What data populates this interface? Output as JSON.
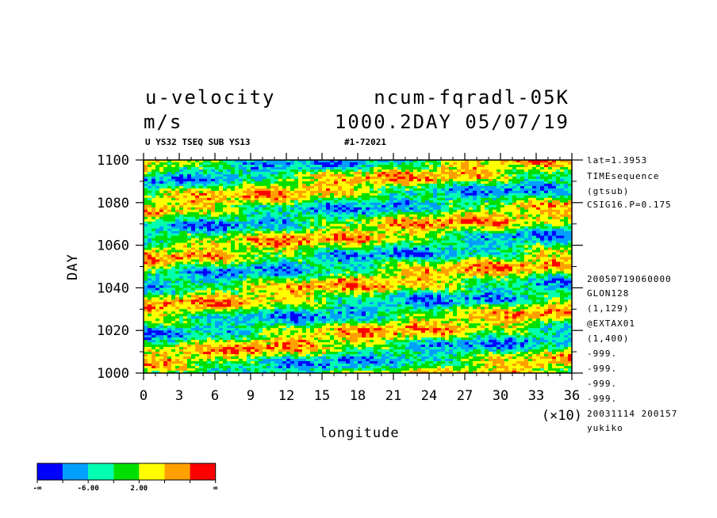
{
  "chart_data": {
    "type": "heatmap",
    "title": "u-velocity",
    "units": "m/s",
    "experiment": "ncum-fqradl-05K",
    "time_label": "1000.2DAY 05/07/19",
    "subtitle_left": "U YS32 TSEQ SUB YS13",
    "subtitle_right": "#1-72021",
    "xlabel": "longitude",
    "ylabel": "DAY",
    "x_multiplier": "(×10)",
    "xlim": [
      0,
      36
    ],
    "ylim": [
      1000,
      1100
    ],
    "x_ticks": [
      "0",
      "3",
      "6",
      "9",
      "12",
      "15",
      "18",
      "21",
      "24",
      "27",
      "30",
      "33",
      "36"
    ],
    "y_ticks": [
      "1000",
      "1020",
      "1040",
      "1060",
      "1080",
      "1100"
    ],
    "colorbar": {
      "colors": [
        "#0000ff",
        "#00a0ff",
        "#00ffb0",
        "#00e000",
        "#ffff00",
        "#ffa000",
        "#ff0000"
      ],
      "labels": [
        "-∞",
        "-6.00",
        "2.00",
        "∞"
      ]
    },
    "info_lines": [
      "lat=1.3953",
      "TIMEsequence",
      "(gtsub)",
      "CSIG16.P=0.175",
      "20050719060000",
      "GLON128",
      "(1,129)",
      "@EXTAX01",
      "(1,400)",
      "-999.",
      "-999.",
      "-999.",
      "-999.",
      "20031114 200157",
      "yukiko"
    ]
  }
}
